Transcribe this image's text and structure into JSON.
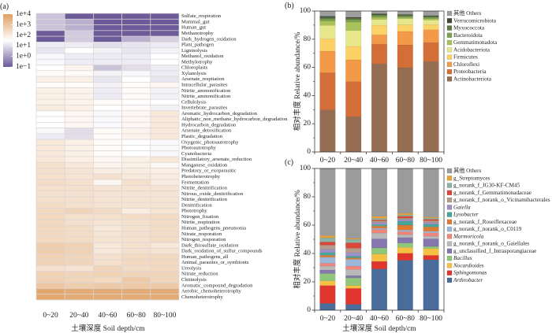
{
  "panels": {
    "a": "(a)",
    "b": "(b)",
    "c": "(c)"
  },
  "chart_data": [
    {
      "id": "a",
      "type": "heatmap",
      "title": "",
      "xlabel": "土壤深度 Soil depth/cm",
      "ylabel": "",
      "categories": [
        "0~20",
        "20~40",
        "40~60",
        "60~80",
        "80~100"
      ],
      "value_scale": "log10",
      "color_range": [
        -1,
        4
      ],
      "color_mid_value": 1.5,
      "colors": {
        "low": "#6b5b98",
        "mid": "#ffffff",
        "high": "#df9f62"
      },
      "colorbar": {
        "placement": "left",
        "ticks": [
          {
            "label": "1e+4",
            "value": 4
          },
          {
            "label": "1e+3",
            "value": 3
          },
          {
            "label": "1e+2",
            "value": 2
          },
          {
            "label": "1e+1",
            "value": 1
          },
          {
            "label": "1e+0",
            "value": 0
          },
          {
            "label": "1e−1",
            "value": -1
          }
        ]
      },
      "rows": [
        {
          "name": "Sulfate_respiration",
          "values_log10": [
            0.6,
            -1,
            -1,
            -1,
            -1
          ]
        },
        {
          "name": "Mammal_gut",
          "values_log10": [
            0.6,
            0.3,
            -1,
            -1,
            -1
          ]
        },
        {
          "name": "Human_gut",
          "values_log10": [
            0.6,
            0.3,
            -1,
            -1,
            -1
          ]
        },
        {
          "name": "Methanotrophy",
          "values_log10": [
            -1,
            0.7,
            -1,
            -1,
            -1
          ]
        },
        {
          "name": "Dark_hydrogen_oxidation",
          "values_log10": [
            -1,
            0.7,
            -1,
            0.3,
            0.8
          ]
        },
        {
          "name": "Plant_pathogen",
          "values_log10": [
            1.2,
            1.2,
            1.0,
            1.1,
            1.2
          ]
        },
        {
          "name": "Ligninolysis",
          "values_log10": [
            1.1,
            1.5,
            1.3,
            1.1,
            1.3
          ]
        },
        {
          "name": "Methanol_oxidation",
          "values_log10": [
            1.4,
            1.2,
            1.2,
            1.2,
            1.5
          ]
        },
        {
          "name": "Methylotrophy",
          "values_log10": [
            1.4,
            1.2,
            1.2,
            1.2,
            1.5
          ]
        },
        {
          "name": "Chloroplasts",
          "values_log10": [
            1.5,
            1.8,
            0.6,
            1.0,
            1.2
          ]
        },
        {
          "name": "Xylanolysis",
          "values_log10": [
            1.6,
            1.6,
            1.3,
            1.4,
            1.2
          ]
        },
        {
          "name": "Arsenate_respitation",
          "values_log10": [
            1.9,
            1.9,
            1.1,
            1.5,
            1.1
          ]
        },
        {
          "name": "Intracellular_parasites",
          "values_log10": [
            1.6,
            1.6,
            1.3,
            1.6,
            1.7
          ]
        },
        {
          "name": "Nitrite_ammonification",
          "values_log10": [
            1.9,
            1.8,
            1.2,
            1.6,
            1.3
          ]
        },
        {
          "name": "Nitrite_ammonification",
          "values_log10": [
            1.9,
            1.8,
            1.2,
            1.6,
            1.3
          ]
        },
        {
          "name": "Cellulolysis",
          "values_log10": [
            1.9,
            1.8,
            1.6,
            1.5,
            1.5
          ]
        },
        {
          "name": "Invertebrate_parasites",
          "values_log10": [
            2.0,
            1.9,
            1.5,
            1.6,
            1.3
          ]
        },
        {
          "name": "Aromatic_hydrocarbon_degradation",
          "values_log10": [
            1.5,
            1.7,
            1.4,
            1.7,
            2.1
          ]
        },
        {
          "name": "Aliphatic_non_methane_hydrocarbon_degradation",
          "values_log10": [
            1.5,
            1.7,
            1.4,
            1.7,
            2.1
          ]
        },
        {
          "name": "Hydrocarbon_degradation",
          "values_log10": [
            1.5,
            1.7,
            1.4,
            1.7,
            2.1
          ]
        },
        {
          "name": "Arsenate_detoxification",
          "values_log10": [
            1.4,
            1.0,
            1.6,
            1.8,
            2.1
          ]
        },
        {
          "name": "Plastic_degradation",
          "values_log10": [
            1.2,
            1.0,
            1.6,
            1.8,
            2.1
          ]
        },
        {
          "name": "Oxygenic_photoautotrophy",
          "values_log10": [
            2.1,
            1.9,
            1.6,
            1.5,
            1.4
          ]
        },
        {
          "name": "Photoautotrophy",
          "values_log10": [
            2.1,
            1.9,
            1.6,
            1.5,
            1.4
          ]
        },
        {
          "name": "Cyanobacteria",
          "values_log10": [
            2.1,
            1.9,
            1.6,
            1.5,
            1.4
          ]
        },
        {
          "name": "Dissimilatory_arsenate_reduction",
          "values_log10": [
            2.1,
            1.9,
            1.7,
            1.9,
            2.1
          ]
        },
        {
          "name": "Manganese_oxidation",
          "values_log10": [
            2.3,
            2.1,
            1.8,
            1.9,
            1.7
          ]
        },
        {
          "name": "Predatory_or_exoparasitic",
          "values_log10": [
            2.3,
            2.2,
            2.0,
            2.0,
            1.9
          ]
        },
        {
          "name": "Photoheterotrophy",
          "values_log10": [
            2.3,
            2.2,
            2.3,
            2.1,
            2.0
          ]
        },
        {
          "name": "Fermentation",
          "values_log10": [
            2.4,
            2.3,
            1.7,
            2.3,
            2.0
          ]
        },
        {
          "name": "Nitrite_denitrification",
          "values_log10": [
            2.3,
            2.3,
            2.2,
            2.2,
            2.2
          ]
        },
        {
          "name": "Nitrous_oxide_denitrification",
          "values_log10": [
            2.3,
            2.3,
            2.2,
            2.2,
            2.2
          ]
        },
        {
          "name": "Nitrite_denitrification",
          "values_log10": [
            2.3,
            2.3,
            2.2,
            2.2,
            2.2
          ]
        },
        {
          "name": "Denitrification",
          "values_log10": [
            2.4,
            2.3,
            2.2,
            2.2,
            2.2
          ]
        },
        {
          "name": "Phototrophy",
          "values_log10": [
            2.5,
            2.6,
            2.4,
            2.0,
            2.2
          ]
        },
        {
          "name": "Nitrogen_fixation",
          "values_log10": [
            2.5,
            2.3,
            2.3,
            2.4,
            2.4
          ]
        },
        {
          "name": "Nitrite_respiration",
          "values_log10": [
            2.5,
            2.3,
            2.2,
            2.3,
            2.4
          ]
        },
        {
          "name": "Human_pathogens_pneumonia",
          "values_log10": [
            2.5,
            2.4,
            2.1,
            2.3,
            2.4
          ]
        },
        {
          "name": "Nitrate_resporation",
          "values_log10": [
            2.5,
            2.4,
            2.2,
            2.3,
            2.4
          ]
        },
        {
          "name": "Nitrogen_resporation",
          "values_log10": [
            2.5,
            2.4,
            2.2,
            2.3,
            2.4
          ]
        },
        {
          "name": "Dark_thiosulfate_oxidation",
          "values_log10": [
            2.8,
            2.7,
            2.1,
            2.3,
            2.1
          ]
        },
        {
          "name": "Dark_oxidation_of_sulfur_compounds",
          "values_log10": [
            2.8,
            2.7,
            2.1,
            2.3,
            2.2
          ]
        },
        {
          "name": "Human_pathogens_all",
          "values_log10": [
            2.7,
            2.6,
            2.3,
            2.5,
            2.5
          ]
        },
        {
          "name": "Animal_parasites_or_symbionts",
          "values_log10": [
            2.7,
            2.6,
            2.3,
            2.5,
            2.5
          ]
        },
        {
          "name": "Ureolysis",
          "values_log10": [
            2.3,
            2.2,
            2.6,
            2.4,
            2.5
          ]
        },
        {
          "name": "Nitrate_reduction",
          "values_log10": [
            2.7,
            2.6,
            2.7,
            2.6,
            2.6
          ]
        },
        {
          "name": "Chitinolysis",
          "values_log10": [
            2.7,
            2.6,
            2.5,
            2.9,
            2.6
          ]
        },
        {
          "name": "Aromatic_compound_degradation",
          "values_log10": [
            3.0,
            2.8,
            2.9,
            2.9,
            2.9
          ]
        },
        {
          "name": "Aerobic_chemoheterotrophy",
          "values_log10": [
            3.8,
            3.7,
            3.7,
            3.7,
            3.7
          ]
        },
        {
          "name": "Chemoheterotrophy",
          "values_log10": [
            3.8,
            3.7,
            3.7,
            3.7,
            3.7
          ]
        }
      ]
    },
    {
      "id": "b",
      "type": "bar",
      "stacked": true,
      "title": "",
      "xlabel": "",
      "ylabel": "相对丰度 Relative abundance/%",
      "ylim": [
        0,
        100
      ],
      "yticks": [
        0,
        20,
        40,
        60,
        80,
        100
      ],
      "grid": false,
      "legend": "right",
      "categories": [
        "0~20",
        "20~40",
        "40~60",
        "60~80",
        "80~100"
      ],
      "series": [
        {
          "name": "其他 Others",
          "color": "#9e9e9e",
          "italic": false,
          "values": [
            3.7,
            4.4,
            1.9,
            2.4,
            3.2
          ]
        },
        {
          "name": "Verrucomicrobiota",
          "color": "#3f4a30",
          "italic": false,
          "values": [
            0.9,
            0.8,
            0.6,
            0.6,
            0.6
          ]
        },
        {
          "name": "Myxococcota",
          "color": "#5d7843",
          "italic": false,
          "values": [
            1.0,
            1.0,
            0.8,
            0.7,
            0.7
          ]
        },
        {
          "name": "Bacteroidota",
          "color": "#7b9f4c",
          "italic": false,
          "values": [
            1.5,
            1.6,
            1.2,
            0.9,
            0.9
          ]
        },
        {
          "name": "Gemmatimonadota",
          "color": "#a8c15a",
          "italic": false,
          "values": [
            3.1,
            6.0,
            1.5,
            0.9,
            1.0
          ]
        },
        {
          "name": "Acidobacteriota",
          "color": "#e6e68a",
          "italic": false,
          "values": [
            9.5,
            11.3,
            4.1,
            4.3,
            3.3
          ]
        },
        {
          "name": "Firmicutes",
          "color": "#fcd166",
          "italic": false,
          "values": [
            8.8,
            9.5,
            6.8,
            4.7,
            3.6
          ]
        },
        {
          "name": "Chloroflexi",
          "color": "#f29a48",
          "italic": false,
          "values": [
            15.3,
            15.5,
            6.5,
            9.5,
            9.1
          ]
        },
        {
          "name": "Proteobacteria",
          "color": "#d36e38",
          "italic": false,
          "values": [
            26.4,
            25.0,
            14.1,
            16.2,
            13.4
          ]
        },
        {
          "name": "Actinobacteriota",
          "color": "#956d53",
          "italic": false,
          "values": [
            29.8,
            24.9,
            62.5,
            59.8,
            64.2
          ]
        }
      ]
    },
    {
      "id": "c",
      "type": "bar",
      "stacked": true,
      "title": "",
      "xlabel": "土壤深度 Soil depth/cm",
      "ylabel": "相对丰度 Relative abundance/%",
      "ylim": [
        0,
        100
      ],
      "yticks": [
        0,
        20,
        40,
        60,
        80,
        100
      ],
      "grid": false,
      "legend": "right",
      "categories": [
        "0~20",
        "20~40",
        "40~60",
        "60~80",
        "80~100"
      ],
      "series": [
        {
          "name": "其他 Others",
          "color": "#9b9b9b",
          "italic": false,
          "values": [
            47.4,
            49.3,
            33.7,
            31.7,
            34.3
          ]
        },
        {
          "name": "g_Streptomyces",
          "color": "#e8a33a",
          "italic": false,
          "values": [
            1.5,
            0.7,
            1.5,
            1.1,
            0.7
          ]
        },
        {
          "name": "g_norank_f_JG30-KF-CM45",
          "color": "#8fb3a3",
          "italic": false,
          "values": [
            3.0,
            2.4,
            1.1,
            0.9,
            0.9
          ]
        },
        {
          "name": "g_norank_f_Gemmatimonadaceae",
          "color": "#d9473b",
          "italic": false,
          "values": [
            2.2,
            3.9,
            0.7,
            1.3,
            1.0
          ]
        },
        {
          "name": "g_norank_f_norank_o_Vicinamibacterales",
          "color": "#b59c8a",
          "italic": false,
          "values": [
            2.9,
            3.0,
            1.1,
            0.9,
            1.2
          ]
        },
        {
          "name": "Gaiella",
          "color": "#9d90c6",
          "italic": true,
          "values": [
            2.3,
            2.6,
            1.5,
            1.3,
            1.3
          ]
        },
        {
          "name": "Lysobacter",
          "color": "#48a698",
          "italic": true,
          "values": [
            2.0,
            1.2,
            1.1,
            2.8,
            1.9
          ]
        },
        {
          "name": "g_norank_f_Roseiflexaceae",
          "color": "#e07a32",
          "italic": false,
          "values": [
            1.3,
            1.0,
            1.5,
            3.5,
            3.0
          ]
        },
        {
          "name": "g_norank_f_norank_o_C0119",
          "color": "#9cb8d9",
          "italic": false,
          "values": [
            4.3,
            4.8,
            0.9,
            1.1,
            1.1
          ]
        },
        {
          "name": "Marmoricola",
          "color": "#f0857c",
          "italic": true,
          "values": [
            2.0,
            2.4,
            2.5,
            2.1,
            2.4
          ]
        },
        {
          "name": "g_norank_f_norank_o_Gaiellales",
          "color": "#b9b9b9",
          "italic": false,
          "values": [
            2.8,
            4.3,
            4.0,
            2.0,
            1.8
          ]
        },
        {
          "name": "g_unclassified_f_Intrasporangiaceae",
          "color": "#8576ad",
          "italic": false,
          "values": [
            2.4,
            1.6,
            6.5,
            3.9,
            5.4
          ]
        },
        {
          "name": "Bacillus",
          "color": "#8fc679",
          "italic": true,
          "values": [
            5.2,
            5.4,
            4.3,
            3.1,
            1.5
          ]
        },
        {
          "name": "Nocardioides",
          "color": "#f6c142",
          "italic": true,
          "values": [
            3.3,
            2.0,
            5.2,
            4.1,
            4.8
          ]
        },
        {
          "name": "Sphingomonas",
          "color": "#e0352c",
          "italic": true,
          "values": [
            12.6,
            11.3,
            5.3,
            5.0,
            3.1
          ]
        },
        {
          "name": "Arthrobacter",
          "color": "#4a6c9b",
          "italic": true,
          "values": [
            4.8,
            4.1,
            29.1,
            35.2,
            35.6
          ]
        }
      ]
    }
  ]
}
